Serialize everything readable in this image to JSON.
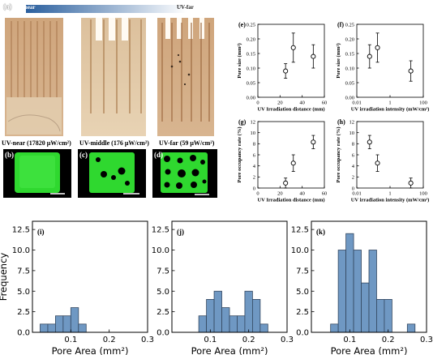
{
  "figure": {
    "panel_a": {
      "letter": "(a)",
      "gradient_left_label": "UV-near",
      "gradient_right_label": "UV-far",
      "captions": [
        "UV-near (17820 μW/cm²)",
        "UV-middle (176 μW/cm²)",
        "UV-far (59 μW/cm²)"
      ]
    },
    "panel_b": {
      "letter": "(b)"
    },
    "panel_c": {
      "letter": "(c)"
    },
    "panel_d": {
      "letter": "(d)"
    },
    "colors": {
      "sample_tan": "#c9a37a",
      "sample_stripe": "#a9784e",
      "fluorescent_green": "#2fd82f",
      "hist_fill": "#6f98c3",
      "hist_edge": "#33475f",
      "gradient_dark": "#2a5f9e"
    }
  },
  "chart_data": [
    {
      "id": "e",
      "letter": "(e)",
      "type": "scatter",
      "xlabel": "UV Irradiation distance (mm)",
      "ylabel": "Pore size (mm²)",
      "xscale": "linear",
      "xlim": [
        0,
        60
      ],
      "ylim": [
        0,
        0.25
      ],
      "xticks": [
        0,
        20,
        40,
        60
      ],
      "xticklabels": [
        "0",
        "20",
        "40",
        "60"
      ],
      "yticks": [
        0,
        0.05,
        0.1,
        0.15,
        0.2,
        0.25
      ],
      "yticklabels": [
        "0.00",
        "0.05",
        "0.10",
        "0.15",
        "0.20",
        "0.25"
      ],
      "points": [
        {
          "x": 25,
          "y": 0.09,
          "err": 0.025
        },
        {
          "x": 32,
          "y": 0.17,
          "err": 0.05
        },
        {
          "x": 50,
          "y": 0.14,
          "err": 0.04
        }
      ]
    },
    {
      "id": "f",
      "letter": "(f)",
      "type": "scatter",
      "xlabel": "UV irradiation intensity (mW/cm²)",
      "ylabel": "Pore size (mm²)",
      "xscale": "log",
      "xlim": [
        0.01,
        100
      ],
      "ylim": [
        0,
        0.25
      ],
      "xticks": [
        0.01,
        1,
        100
      ],
      "xticklabels": [
        "0.01",
        "1",
        "100"
      ],
      "yticks": [
        0,
        0.05,
        0.1,
        0.15,
        0.2,
        0.25
      ],
      "yticklabels": [
        "0.00",
        "0.05",
        "0.10",
        "0.15",
        "0.20",
        "0.25"
      ],
      "points": [
        {
          "x": 0.059,
          "y": 0.14,
          "err": 0.04
        },
        {
          "x": 0.176,
          "y": 0.17,
          "err": 0.05
        },
        {
          "x": 17.82,
          "y": 0.09,
          "err": 0.035
        }
      ]
    },
    {
      "id": "g",
      "letter": "(g)",
      "type": "scatter",
      "xlabel": "UV Irradiation distance (mm)",
      "ylabel": "Pore occupancy rate (%)",
      "xscale": "linear",
      "xlim": [
        0,
        60
      ],
      "ylim": [
        0,
        12
      ],
      "xticks": [
        0,
        20,
        40,
        60
      ],
      "xticklabels": [
        "0",
        "20",
        "40",
        "60"
      ],
      "yticks": [
        0,
        2,
        4,
        6,
        8,
        10,
        12
      ],
      "yticklabels": [
        "0",
        "2",
        "4",
        "6",
        "8",
        "10",
        "12"
      ],
      "points": [
        {
          "x": 25,
          "y": 0.9,
          "err": 0.9
        },
        {
          "x": 32,
          "y": 4.5,
          "err": 1.5
        },
        {
          "x": 50,
          "y": 8.3,
          "err": 1.2
        }
      ]
    },
    {
      "id": "h",
      "letter": "(h)",
      "type": "scatter",
      "xlabel": "UV irradiation intensity (mW/cm²)",
      "ylabel": "Pore occupancy rate (%)",
      "xscale": "log",
      "xlim": [
        0.01,
        100
      ],
      "ylim": [
        0,
        12
      ],
      "xticks": [
        0.01,
        1,
        100
      ],
      "xticklabels": [
        "0.01",
        "1",
        "100"
      ],
      "yticks": [
        0,
        2,
        4,
        6,
        8,
        10,
        12
      ],
      "yticklabels": [
        "0",
        "2",
        "4",
        "6",
        "8",
        "10",
        "12"
      ],
      "points": [
        {
          "x": 0.059,
          "y": 8.3,
          "err": 1.2
        },
        {
          "x": 0.176,
          "y": 4.5,
          "err": 1.5
        },
        {
          "x": 17.82,
          "y": 0.9,
          "err": 0.9
        }
      ]
    },
    {
      "id": "i",
      "letter": "(i)",
      "type": "bar",
      "xlabel": "Pore Area (mm²)",
      "ylabel": "Frequency",
      "xlim": [
        0,
        0.3
      ],
      "ylim": [
        0,
        13.5
      ],
      "xticks": [
        0.1,
        0.2,
        0.3
      ],
      "xticklabels": [
        "0.1",
        "0.2",
        "0.3"
      ],
      "yticks": [
        0,
        2.5,
        5,
        7.5,
        10,
        12.5
      ],
      "yticklabels": [
        "0.0",
        "2.5",
        "5.0",
        "7.5",
        "10.0",
        "12.5"
      ],
      "bin_width": 0.02,
      "bins": [
        {
          "x0": 0.02,
          "count": 1
        },
        {
          "x0": 0.04,
          "count": 1
        },
        {
          "x0": 0.06,
          "count": 2
        },
        {
          "x0": 0.08,
          "count": 2
        },
        {
          "x0": 0.1,
          "count": 3
        },
        {
          "x0": 0.12,
          "count": 1
        }
      ]
    },
    {
      "id": "j",
      "letter": "(j)",
      "type": "bar",
      "xlabel": "Pore Area (mm²)",
      "ylabel": "",
      "xlim": [
        0,
        0.3
      ],
      "ylim": [
        0,
        13.5
      ],
      "xticks": [
        0.1,
        0.2,
        0.3
      ],
      "xticklabels": [
        "0.1",
        "0.2",
        "0.3"
      ],
      "yticks": [
        0,
        2.5,
        5,
        7.5,
        10,
        12.5
      ],
      "yticklabels": [
        "0.0",
        "2.5",
        "5.0",
        "7.5",
        "10.0",
        "12.5"
      ],
      "bin_width": 0.02,
      "bins": [
        {
          "x0": 0.07,
          "count": 2
        },
        {
          "x0": 0.09,
          "count": 4
        },
        {
          "x0": 0.11,
          "count": 5
        },
        {
          "x0": 0.13,
          "count": 3
        },
        {
          "x0": 0.15,
          "count": 2
        },
        {
          "x0": 0.17,
          "count": 2
        },
        {
          "x0": 0.19,
          "count": 5
        },
        {
          "x0": 0.21,
          "count": 4
        },
        {
          "x0": 0.23,
          "count": 1
        }
      ]
    },
    {
      "id": "k",
      "letter": "(k)",
      "type": "bar",
      "xlabel": "Pore Area (mm²)",
      "ylabel": "",
      "xlim": [
        0,
        0.3
      ],
      "ylim": [
        0,
        13.5
      ],
      "xticks": [
        0.1,
        0.2,
        0.3
      ],
      "xticklabels": [
        "0.1",
        "0.2",
        "0.3"
      ],
      "yticks": [
        0,
        2.5,
        5,
        7.5,
        10,
        12.5
      ],
      "yticklabels": [
        "0.0",
        "2.5",
        "5.0",
        "7.5",
        "10.0",
        "12.5"
      ],
      "bin_width": 0.02,
      "bins": [
        {
          "x0": 0.05,
          "count": 1
        },
        {
          "x0": 0.07,
          "count": 10
        },
        {
          "x0": 0.09,
          "count": 12
        },
        {
          "x0": 0.11,
          "count": 10
        },
        {
          "x0": 0.13,
          "count": 6
        },
        {
          "x0": 0.15,
          "count": 10
        },
        {
          "x0": 0.17,
          "count": 4
        },
        {
          "x0": 0.19,
          "count": 4
        },
        {
          "x0": 0.21,
          "count": 0
        },
        {
          "x0": 0.23,
          "count": 0
        },
        {
          "x0": 0.25,
          "count": 1
        }
      ]
    }
  ]
}
